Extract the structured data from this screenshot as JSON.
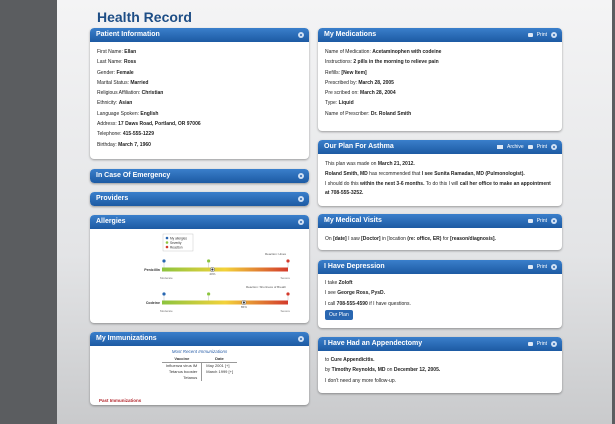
{
  "page": {
    "title": "Health Record"
  },
  "colors": {
    "header": "#2a67b1",
    "title": "#1e4e86",
    "link_red": "#b3272d"
  },
  "patient": {
    "title": "Patient Information",
    "rows": [
      {
        "label": "First Name:",
        "value": "Ellan"
      },
      {
        "label": "Last Name:",
        "value": "Ross"
      },
      {
        "label": "Gender:",
        "value": "Female"
      },
      {
        "label": "Marital Status:",
        "value": "Married"
      },
      {
        "label": "Religious Affiliation:",
        "value": "Christian"
      },
      {
        "label": "Ethnicity:",
        "value": "Asian"
      },
      {
        "label": "Language Spoken:",
        "value": "English"
      },
      {
        "label": "Address:",
        "value": "17 Daws Road, Portland, OR 97006"
      },
      {
        "label": "Telephone:",
        "value": "415-555-1229"
      },
      {
        "label": "Birthday:",
        "value": "March 7, 1960"
      }
    ]
  },
  "emergency": {
    "title": "In Case Of Emergency"
  },
  "providers": {
    "title": "Providers"
  },
  "allergies": {
    "title": "Allergies",
    "legend": [
      "My allergies",
      "Severity",
      "Reaction"
    ],
    "items": [
      {
        "name": "Penicillin",
        "severity": 0.4,
        "severity_label": "40%",
        "reaction": "Reaction: Hives",
        "scale_low": "Moderate",
        "scale_high": "Severe"
      },
      {
        "name": "Codeine",
        "severity": 0.65,
        "severity_label": "65%",
        "reaction": "Reaction: Shortness of Breath",
        "scale_low": "Moderate",
        "scale_high": "Severe"
      }
    ]
  },
  "immunizations": {
    "title": "My Immunizations",
    "table_title": "Most Recent Immunizations",
    "col_vaccine": "Vaccine",
    "col_date": "Date",
    "rows": [
      {
        "vaccine": "Influenza virus IM",
        "date": "May 2001 [+]"
      },
      {
        "vaccine": "Tetanus booster",
        "date": "March 1999 [+]"
      },
      {
        "vaccine": "Tetanus",
        "date": ""
      }
    ],
    "past_link": "Past Immunizations"
  },
  "medications": {
    "title": "My Medications",
    "print": "Print",
    "rows": [
      {
        "label": "Name of Medication:",
        "value": "Acetaminophen with codeine"
      },
      {
        "label": "Instructions:",
        "value": "2 pills in the morning to relieve pain"
      },
      {
        "label": "Refills:",
        "value": "[New Item]"
      },
      {
        "label": "Prescribed by:",
        "value": "March 28, 2005"
      },
      {
        "label": "Pre scribed on:",
        "value": "March 28, 2004"
      },
      {
        "label": "Type:",
        "value": "Liquid"
      },
      {
        "label": "Name of Prescriber:",
        "value": "Dr. Roland Smith"
      }
    ]
  },
  "plan": {
    "title": "Our Plan For Asthma",
    "archive": "Archive",
    "print": "Print",
    "line1_a": "This plan was made on ",
    "line1_b": "March 21, 2012.",
    "line2_a": "Roland Smith, MD",
    "line2_b": " has recommended that ",
    "line2_c": "I see Sunita Ramadan, MD (Pulmonologist).",
    "line3_a": "I should do this ",
    "line3_b": "within the next 3-6 months.",
    "line3_c": " To do this I will ",
    "line3_d": "call her office to make an appointment at 708-555-3252."
  },
  "visits": {
    "title": "My Medical Visits",
    "print": "Print",
    "p1": "On ",
    "p2": "[date]",
    "p3": " I saw ",
    "p4": "[Doctor]",
    "p5": " in [location ",
    "p6": "(re: office, ER)",
    "p7": " for ",
    "p8": "[reason/diagnosis]."
  },
  "depression": {
    "title": "I Have Depression",
    "print": "Print",
    "take_label": "I take ",
    "take_value": "Zoloft",
    "see_label": "I see ",
    "see_value": "George Ross, PysD.",
    "call_label": "I call ",
    "call_value": "708-555-4590",
    "call_tail": " if I have questions.",
    "button": "Our Plan"
  },
  "appendectomy": {
    "title": "I Have Had an Appendectomy",
    "print": "Print",
    "l1_a": "to ",
    "l1_b": "Cure Appendicitis.",
    "l2_a": "by ",
    "l2_b": "Timothy Reynolds, MD",
    "l2_c": " on ",
    "l2_d": "December 12, 2005.",
    "l3": "I don't need any more follow-up."
  }
}
